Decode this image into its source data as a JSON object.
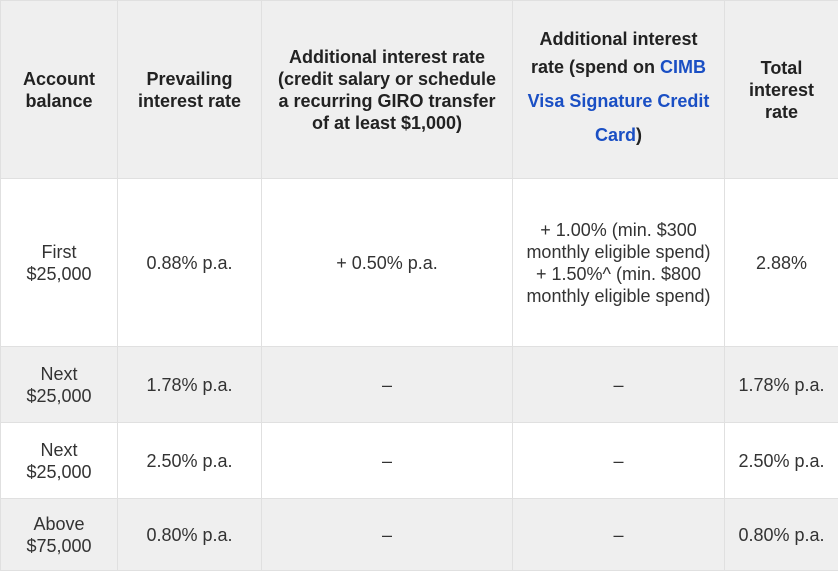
{
  "table": {
    "header": [
      "Account balance",
      "Prevailing interest rate",
      "Additional interest rate (credit salary or schedule a recurring GIRO transfer of at least $1,000)",
      {
        "text": "Additional interest rate (spend on",
        "link": "CIMB Visa Signature Credit Card",
        "end": ")"
      },
      "Total interest rate"
    ],
    "rows": [
      [
        "First $25,000",
        "0.88% p.a.",
        "+ 0.50% p.a.",
        [
          "+ 1.00% (min. $300 monthly eligible spend)",
          "+ 1.50%^ (min. $800 monthly eligible spend)"
        ],
        "2.88%"
      ],
      [
        "Next $25,000",
        "1.78% p.a.",
        "–",
        "–",
        "1.78% p.a."
      ],
      [
        "Next $25,000",
        "2.50% p.a.",
        "–",
        "–",
        "2.50% p.a."
      ],
      [
        "Above $75,000",
        "0.80% p.a.",
        "–",
        "–",
        "0.80% p.a."
      ]
    ]
  }
}
